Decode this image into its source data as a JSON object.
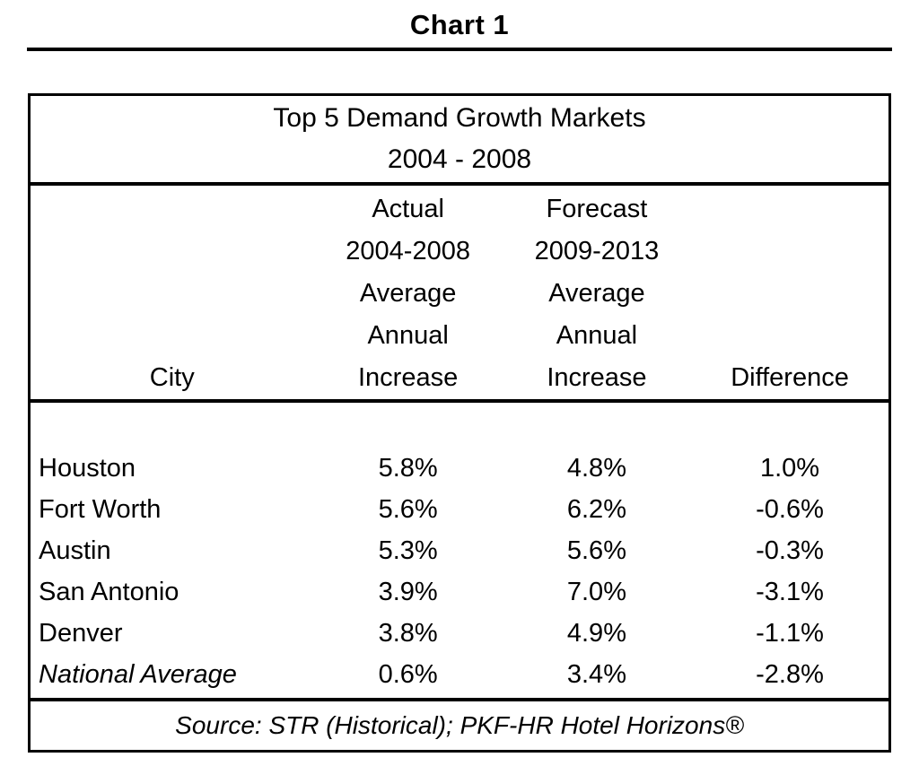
{
  "page": {
    "title": "Chart 1"
  },
  "table": {
    "title_lines": [
      "Top 5 Demand Growth Markets",
      "2004 - 2008"
    ],
    "header": {
      "col_city": "City",
      "col_actual_lines": [
        "Actual",
        "2004-2008",
        "Average",
        "Annual",
        "Increase"
      ],
      "col_forecast_lines": [
        "Forecast",
        "2009-2013",
        "Average",
        "Annual",
        "Increase"
      ],
      "col_difference": "Difference"
    },
    "rows": [
      {
        "city": "Houston",
        "actual": "5.8%",
        "forecast": "4.8%",
        "difference": "1.0%"
      },
      {
        "city": "Fort Worth",
        "actual": "5.6%",
        "forecast": "6.2%",
        "difference": "-0.6%"
      },
      {
        "city": "Austin",
        "actual": "5.3%",
        "forecast": "5.6%",
        "difference": "-0.3%"
      },
      {
        "city": "San Antonio",
        "actual": "3.9%",
        "forecast": "7.0%",
        "difference": "-3.1%"
      },
      {
        "city": "Denver",
        "actual": "3.8%",
        "forecast": "4.9%",
        "difference": "-1.1%"
      },
      {
        "city": "National Average",
        "actual": "0.6%",
        "forecast": "3.4%",
        "difference": "-2.8%",
        "italic": true
      }
    ],
    "source": "Source: STR (Historical); PKF-HR Hotel Horizons®"
  },
  "colors": {
    "text": "#000000",
    "background": "#ffffff",
    "border": "#000000"
  },
  "chart_data": {
    "type": "table",
    "title": "Top 5 Demand Growth Markets 2004 - 2008",
    "figure_label": "Chart 1",
    "columns": [
      "City",
      "Actual 2004-2008 Average Annual Increase",
      "Forecast 2009-2013 Average Annual Increase",
      "Difference"
    ],
    "units": "%",
    "rows": [
      [
        "Houston",
        5.8,
        4.8,
        1.0
      ],
      [
        "Fort Worth",
        5.6,
        6.2,
        -0.6
      ],
      [
        "Austin",
        5.3,
        5.6,
        -0.3
      ],
      [
        "San Antonio",
        3.9,
        7.0,
        -3.1
      ],
      [
        "Denver",
        3.8,
        4.9,
        -1.1
      ],
      [
        "National Average",
        0.6,
        3.4,
        -2.8
      ]
    ],
    "source": "Source: STR (Historical); PKF-HR Hotel Horizons®"
  }
}
